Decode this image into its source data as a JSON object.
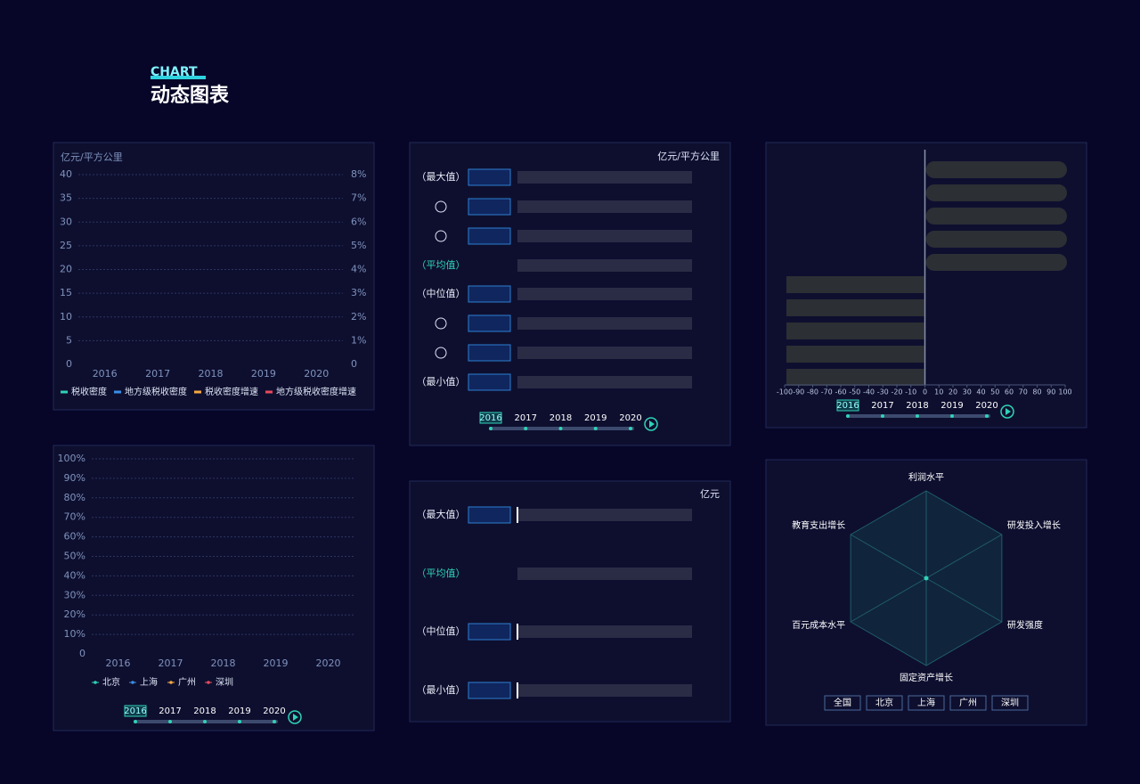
{
  "header": {
    "eyebrow": "CHART",
    "title": "动态图表"
  },
  "chart_data": [
    {
      "type": "line",
      "ylabel": "亿元/平方公里",
      "categories": [
        2016,
        2017,
        2018,
        2019,
        2020
      ],
      "ylim": [
        0,
        40
      ],
      "yticks": [
        0,
        5,
        10,
        15,
        20,
        25,
        30,
        35,
        40
      ],
      "y2lim": [
        0,
        8
      ],
      "y2ticks": [
        0,
        {
          "value": 1,
          "label": "1%"
        },
        {
          "value": 2,
          "label": "2%"
        },
        {
          "value": 3,
          "label": "3%"
        },
        {
          "value": 4,
          "label": "4%"
        },
        {
          "value": 5,
          "label": "5%"
        },
        {
          "value": 6,
          "label": "6%"
        },
        {
          "value": 7,
          "label": "7%"
        },
        {
          "value": 8,
          "label": "8%"
        }
      ],
      "grid": true,
      "series": [
        {
          "name": "税收密度",
          "color": "#2fd3b5",
          "values": [
            null,
            null,
            null,
            null,
            null
          ]
        },
        {
          "name": "地方级税收密度",
          "color": "#3a8ee6",
          "values": [
            null,
            null,
            null,
            null,
            null
          ]
        },
        {
          "name": "税收密度增速",
          "color": "#f5a742",
          "values": [
            null,
            null,
            null,
            null,
            null
          ],
          "axis": "y2"
        },
        {
          "name": "地方级税收密度增速",
          "color": "#e8495b",
          "values": [
            null,
            null,
            null,
            null,
            null
          ],
          "axis": "y2"
        }
      ]
    },
    {
      "type": "hbar",
      "unit": "亿元/平方公里",
      "categories": [
        "（最大值）",
        null,
        null,
        "（平均值）",
        "（中位值）",
        null,
        null,
        "（最小值）"
      ],
      "highlight": 3,
      "timeline": {
        "years": [
          2016,
          2017,
          2018,
          2019,
          2020
        ],
        "current": 0
      }
    },
    {
      "type": "diverging",
      "xlim": [
        -100,
        100
      ],
      "xticks": [
        -100,
        -90,
        -80,
        -70,
        -60,
        -50,
        -40,
        -30,
        -20,
        -10,
        0,
        10,
        20,
        30,
        40,
        50,
        60,
        70,
        80,
        90,
        100
      ],
      "timeline": {
        "years": [
          2016,
          2017,
          2018,
          2019,
          2020
        ],
        "current": 0
      }
    },
    {
      "type": "line",
      "categories": [
        2016,
        2017,
        2018,
        2019,
        2020
      ],
      "ylim": [
        0,
        100
      ],
      "yticks": [
        0,
        {
          "value": 10,
          "label": "10%"
        },
        {
          "value": 20,
          "label": "20%"
        },
        {
          "value": 30,
          "label": "30%"
        },
        {
          "value": 40,
          "label": "40%"
        },
        {
          "value": 50,
          "label": "50%"
        },
        {
          "value": 60,
          "label": "60%"
        },
        {
          "value": 70,
          "label": "70%"
        },
        {
          "value": 80,
          "label": "80%"
        },
        {
          "value": 90,
          "label": "90%"
        },
        {
          "value": 100,
          "label": "100%"
        }
      ],
      "grid": true,
      "series": [
        {
          "name": "北京",
          "color": "#2fd3b5",
          "values": [
            null,
            null,
            null,
            null,
            null
          ]
        },
        {
          "name": "上海",
          "color": "#3a8ee6",
          "values": [
            null,
            null,
            null,
            null,
            null
          ]
        },
        {
          "name": "广州",
          "color": "#f5a742",
          "values": [
            null,
            null,
            null,
            null,
            null
          ]
        },
        {
          "name": "深圳",
          "color": "#e8495b",
          "values": [
            null,
            null,
            null,
            null,
            null
          ]
        }
      ],
      "timeline": {
        "years": [
          2016,
          2017,
          2018,
          2019,
          2020
        ],
        "current": 0
      }
    },
    {
      "type": "hbar2",
      "unit": "亿元",
      "categories": [
        "（最大值）",
        "（平均值）",
        "（中位值）",
        "（最小值）"
      ],
      "highlight": 1
    },
    {
      "type": "radar",
      "indicators": [
        "利润水平",
        "研发投入增长",
        "研发强度",
        "固定资产增长",
        "百元成本水平",
        "教育支出增长"
      ],
      "buttons": [
        "全国",
        "北京",
        "上海",
        "广州",
        "深圳"
      ]
    }
  ]
}
